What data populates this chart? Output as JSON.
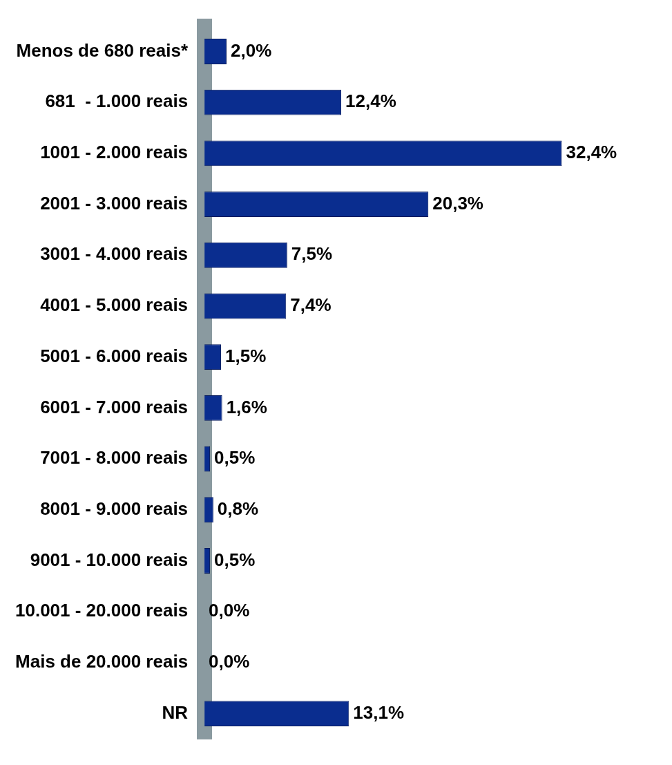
{
  "chart_data": {
    "type": "bar",
    "orientation": "horizontal",
    "categories": [
      "Menos de 680 reais*",
      "681  - 1.000 reais",
      "1001 - 2.000 reais",
      "2001 - 3.000 reais",
      "3001 - 4.000 reais",
      "4001 - 5.000 reais",
      "5001 - 6.000 reais",
      "6001 - 7.000 reais",
      "7001 - 8.000 reais",
      "8001 - 9.000 reais",
      "9001 - 10.000 reais",
      "10.001 - 20.000 reais",
      "Mais de 20.000 reais",
      "NR"
    ],
    "values": [
      2.0,
      12.4,
      32.4,
      20.3,
      7.5,
      7.4,
      1.5,
      1.6,
      0.5,
      0.8,
      0.5,
      0.0,
      0.0,
      13.1
    ],
    "color": "#0a2d8f",
    "value_labels": [
      "2,0%",
      "12,4%",
      "32,4%",
      "20,3%",
      "7,5%",
      "7,4%",
      "1,5%",
      "1,6%",
      "0,5%",
      "0,8%",
      "0,5%",
      "0,0%",
      "0,0%",
      "13,1%"
    ]
  }
}
